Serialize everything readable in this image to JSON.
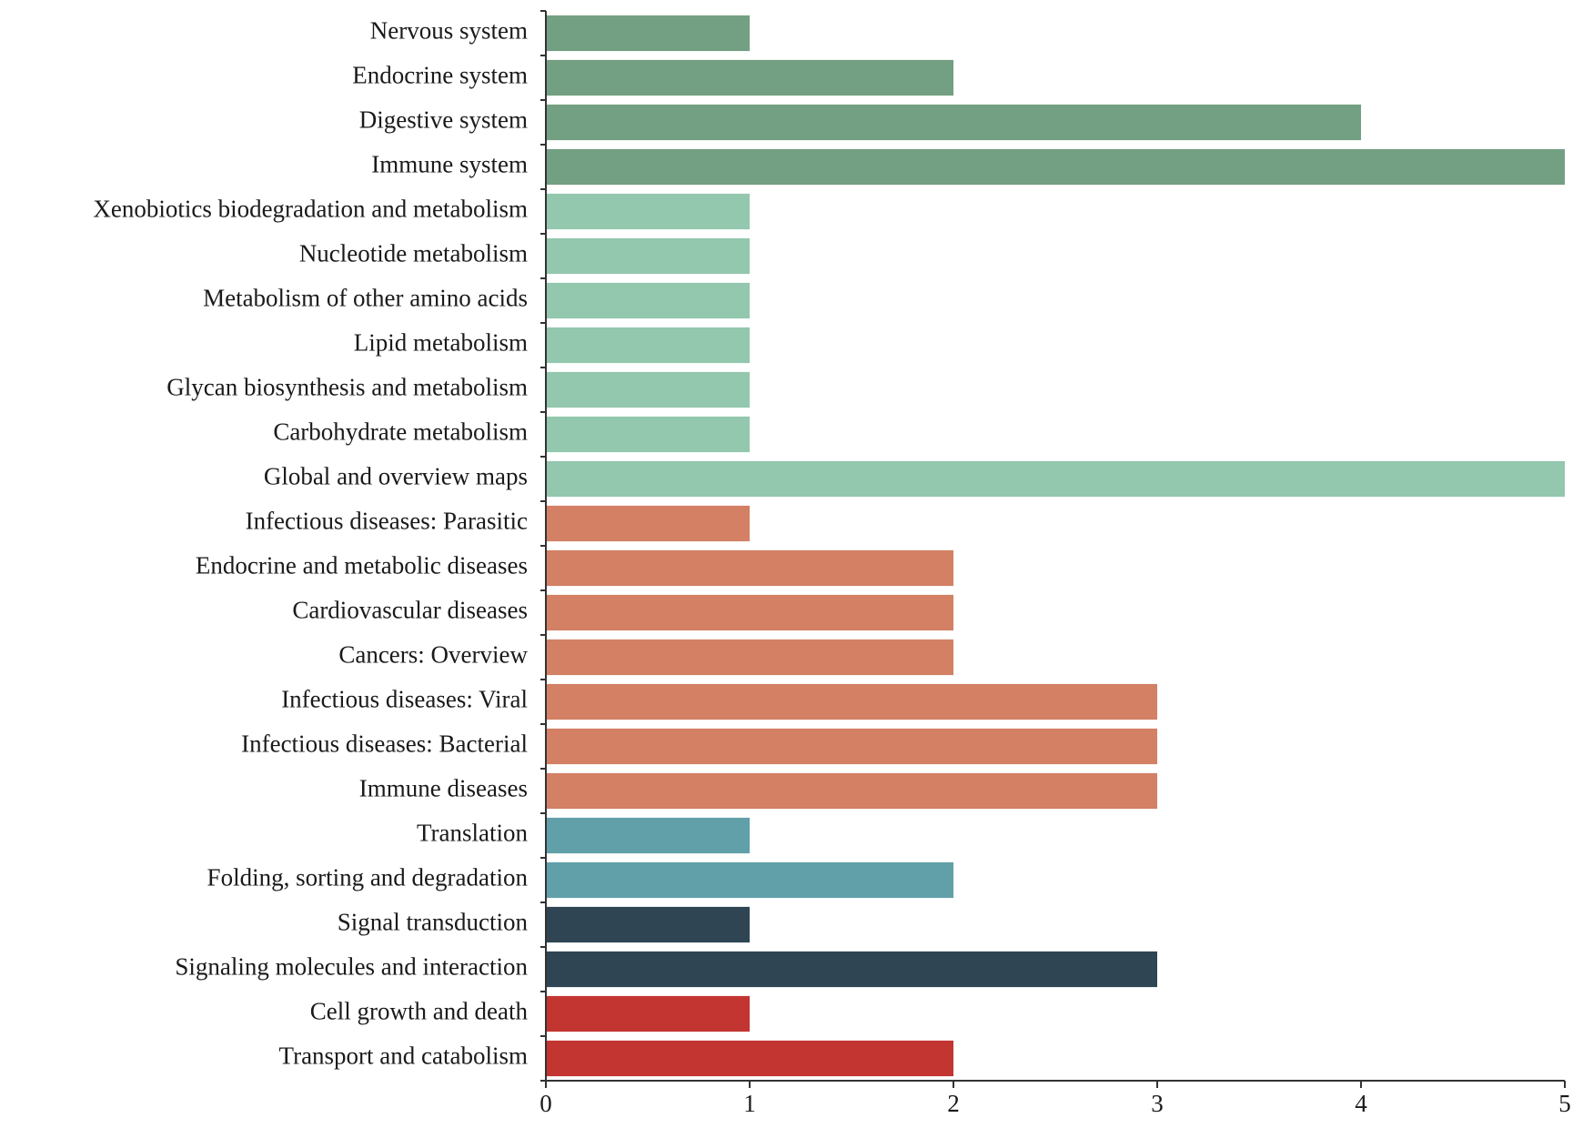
{
  "chart_data": {
    "type": "bar",
    "orientation": "horizontal",
    "categories": [
      "Nervous system",
      "Endocrine system",
      "Digestive system",
      "Immune system",
      "Xenobiotics biodegradation and metabolism",
      "Nucleotide metabolism",
      "Metabolism of other amino acids",
      "Lipid metabolism",
      "Glycan biosynthesis and metabolism",
      "Carbohydrate metabolism",
      "Global and overview maps",
      "Infectious diseases: Parasitic",
      "Endocrine and metabolic diseases",
      "Cardiovascular diseases",
      "Cancers: Overview",
      "Infectious diseases: Viral",
      "Infectious diseases: Bacterial",
      "Immune diseases",
      "Translation",
      "Folding, sorting and degradation",
      "Signal transduction",
      "Signaling molecules and interaction",
      "Cell growth and death",
      "Transport and catabolism"
    ],
    "values": [
      1,
      2,
      4,
      5,
      1,
      1,
      1,
      1,
      1,
      1,
      5,
      1,
      2,
      2,
      2,
      3,
      3,
      3,
      1,
      2,
      1,
      3,
      1,
      2
    ],
    "bar_colors": [
      "#739f82",
      "#739f82",
      "#739f82",
      "#739f82",
      "#93c7ae",
      "#93c7ae",
      "#93c7ae",
      "#93c7ae",
      "#93c7ae",
      "#93c7ae",
      "#93c7ae",
      "#d38064",
      "#d38064",
      "#d38064",
      "#d38064",
      "#d38064",
      "#d38064",
      "#d38064",
      "#61a0a9",
      "#61a0a9",
      "#2f4553",
      "#2f4553",
      "#c23531",
      "#c23531"
    ],
    "xticks": [
      "0",
      "1",
      "2",
      "3",
      "4",
      "5"
    ],
    "xlim": [
      0,
      5
    ],
    "grid": false,
    "title": "",
    "xlabel": "",
    "ylabel": ""
  }
}
